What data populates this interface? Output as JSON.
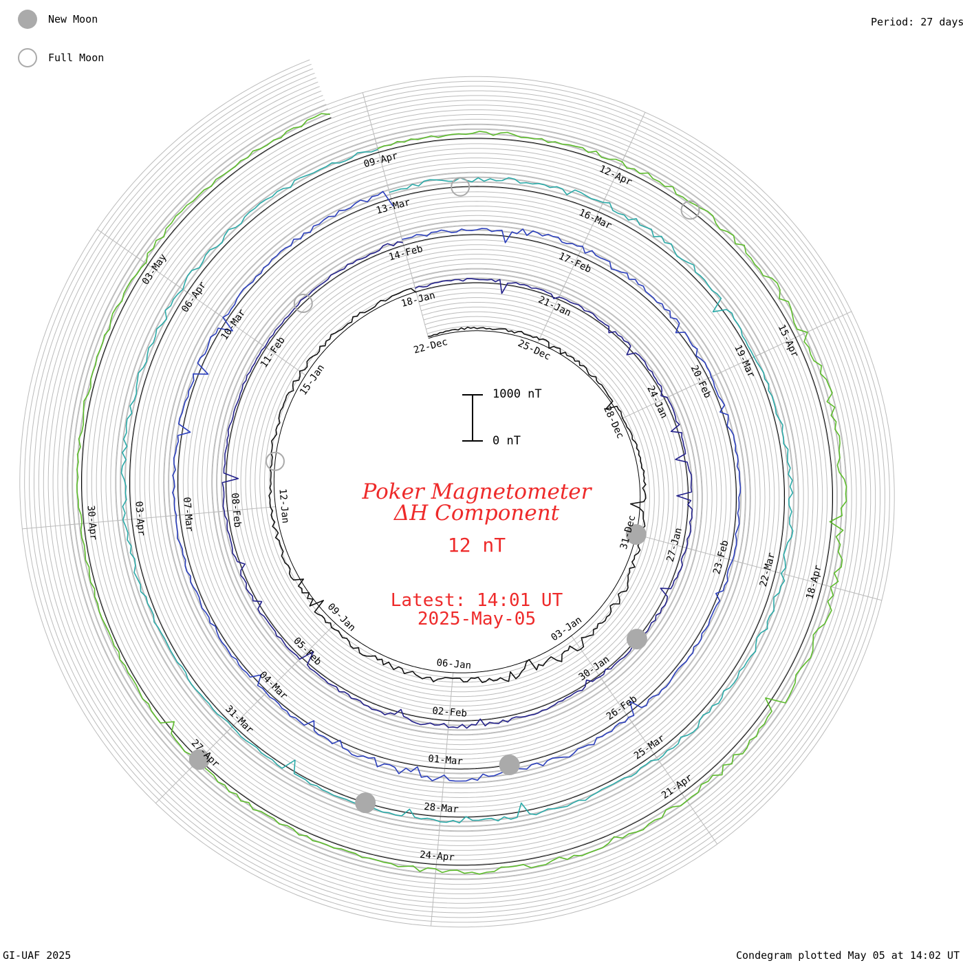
{
  "period_label": "Period: 27 days",
  "legend": {
    "new_moon": "New Moon",
    "full_moon": "Full Moon"
  },
  "credit": "GI-UAF 2025",
  "plotted": "Condegram plotted May 05 at 14:02 UT",
  "scale": {
    "top": "1000 nT",
    "bottom": "0 nT"
  },
  "center": {
    "title_line1": "Poker Magnetometer",
    "title_line2": "ΔH Component",
    "current_value": "12 nT",
    "latest_label": "Latest: 14:01 UT",
    "latest_date": "2025-May-05"
  },
  "colors": {
    "moon": "#aaaaaa",
    "grid": "#bbbbbb",
    "baseline": "#000000",
    "center_text": "#ee2a2a",
    "cycles": [
      "#111111",
      "#22208a",
      "#2a3ebc",
      "#2aaaa8",
      "#5cbc2a",
      "#b09a18",
      "#c06a18",
      "#c01a10"
    ]
  },
  "chart_data": {
    "type": "line",
    "subtype": "condegram-spiral",
    "period_days": 27,
    "start_date": "2024-12-22",
    "end_date": "2025-05-05",
    "unit": "nT",
    "scale_bar": [
      0,
      1000
    ],
    "series": [
      {
        "x": [
          "22-Dec",
          "25-Dec",
          "28-Dec",
          "31-Dec",
          "03-Jan",
          "06-Jan",
          "09-Jan",
          "12-Jan",
          "15-Jan"
        ],
        "values": [
          40,
          90,
          60,
          120,
          250,
          180,
          120,
          90,
          110
        ]
      },
      {
        "x": [
          "18-Jan",
          "21-Jan",
          "24-Jan",
          "27-Jan",
          "30-Jan",
          "02-Feb",
          "05-Feb",
          "08-Feb",
          "11-Feb"
        ],
        "values": [
          70,
          60,
          45,
          80,
          35,
          120,
          55,
          60,
          40
        ]
      },
      {
        "x": [
          "14-Feb",
          "17-Feb",
          "20-Feb",
          "23-Feb",
          "26-Feb",
          "01-Mar",
          "04-Mar",
          "07-Mar",
          "10-Mar"
        ],
        "values": [
          100,
          160,
          70,
          60,
          90,
          210,
          40,
          90,
          70
        ]
      },
      {
        "x": [
          "13-Mar",
          "16-Mar",
          "19-Mar",
          "22-Mar",
          "25-Mar",
          "28-Mar",
          "31-Mar",
          "03-Apr",
          "06-Apr"
        ],
        "values": [
          140,
          190,
          60,
          170,
          120,
          80,
          45,
          130,
          150
        ]
      },
      {
        "x": [
          "09-Apr",
          "12-Apr",
          "15-Apr",
          "18-Apr",
          "21-Apr",
          "24-Apr",
          "27-Apr",
          "30-Apr",
          "03-May"
        ],
        "values": [
          90,
          120,
          200,
          250,
          160,
          130,
          70,
          60,
          120
        ]
      }
    ],
    "new_moons": [
      "31-Dec",
      "29-Jan",
      "28-Feb",
      "29-Mar",
      "27-Apr"
    ],
    "full_moons": [
      "13-Jan",
      "12-Feb",
      "14-Mar",
      "13-Apr"
    ]
  }
}
